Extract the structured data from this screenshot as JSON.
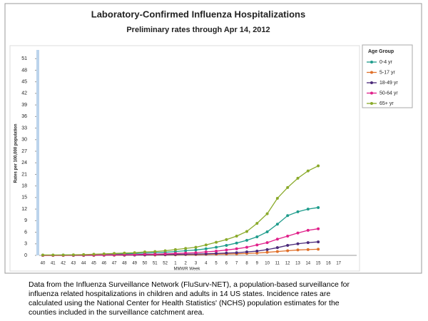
{
  "chart_data": {
    "type": "line",
    "title": "Laboratory-Confirmed Influenza Hospitalizations",
    "subtitle": "Preliminary rates through Apr 14, 2012",
    "x_label": "MMWR Week",
    "y_label": "Rates per 100,000 population",
    "legend_title": "Age Group",
    "legend_position": "right",
    "grid": false,
    "categories": [
      "40",
      "41",
      "42",
      "43",
      "44",
      "45",
      "46",
      "47",
      "48",
      "49",
      "50",
      "51",
      "52",
      "1",
      "2",
      "3",
      "4",
      "5",
      "6",
      "7",
      "8",
      "9",
      "10",
      "11",
      "12",
      "13",
      "14",
      "15",
      "16",
      "17"
    ],
    "ylim": [
      0,
      54
    ],
    "yticks": [
      0,
      3,
      6,
      9,
      12,
      15,
      18,
      21,
      24,
      27,
      30,
      33,
      36,
      39,
      42,
      45,
      48,
      51
    ],
    "series": [
      {
        "name": "0-4 yr",
        "color": "#1f9c8c",
        "values": [
          0.05,
          0.05,
          0.1,
          0.1,
          0.15,
          0.2,
          0.3,
          0.35,
          0.4,
          0.5,
          0.6,
          0.7,
          0.8,
          1.0,
          1.2,
          1.4,
          1.7,
          2.1,
          2.6,
          3.2,
          3.9,
          4.8,
          6.1,
          8.1,
          10.3,
          11.3,
          12.0,
          12.4,
          null,
          null
        ]
      },
      {
        "name": "5-17 yr",
        "color": "#e0702a",
        "values": [
          0,
          0,
          0,
          0,
          0,
          0,
          0.05,
          0.05,
          0.05,
          0.1,
          0.1,
          0.1,
          0.15,
          0.15,
          0.2,
          0.2,
          0.25,
          0.3,
          0.35,
          0.4,
          0.5,
          0.6,
          0.8,
          1.0,
          1.2,
          1.4,
          1.5,
          1.6,
          null,
          null
        ]
      },
      {
        "name": "18-49 yr",
        "color": "#4b2a7a",
        "values": [
          0,
          0,
          0,
          0,
          0,
          0.05,
          0.05,
          0.1,
          0.1,
          0.1,
          0.15,
          0.2,
          0.2,
          0.25,
          0.3,
          0.35,
          0.4,
          0.5,
          0.6,
          0.7,
          0.9,
          1.1,
          1.5,
          2.0,
          2.6,
          3.0,
          3.3,
          3.5,
          null,
          null
        ]
      },
      {
        "name": "50-64 yr",
        "color": "#e0208a",
        "values": [
          0,
          0,
          0,
          0.05,
          0.05,
          0.1,
          0.1,
          0.15,
          0.2,
          0.2,
          0.3,
          0.3,
          0.4,
          0.5,
          0.6,
          0.7,
          0.9,
          1.1,
          1.4,
          1.7,
          2.1,
          2.7,
          3.3,
          4.2,
          5.0,
          5.8,
          6.5,
          6.9,
          null,
          null
        ]
      },
      {
        "name": "65+ yr",
        "color": "#8aaa2a",
        "values": [
          0.1,
          0.1,
          0.1,
          0.15,
          0.2,
          0.3,
          0.4,
          0.5,
          0.6,
          0.7,
          0.9,
          1.0,
          1.2,
          1.5,
          1.8,
          2.1,
          2.7,
          3.4,
          4.1,
          5.0,
          6.2,
          8.3,
          10.8,
          14.8,
          17.6,
          20.0,
          21.9,
          23.2,
          null,
          null
        ]
      }
    ],
    "note": "Data from the Influenza Surveillance Network (FluSurv-NET), a population-based surveillance for influenza related hospitalizations in children and adults in 14 US states. Incidence rates are calculated using the National Center for Health Statistics' (NCHS) population estimates for the counties included in the surveillance catchment area."
  }
}
